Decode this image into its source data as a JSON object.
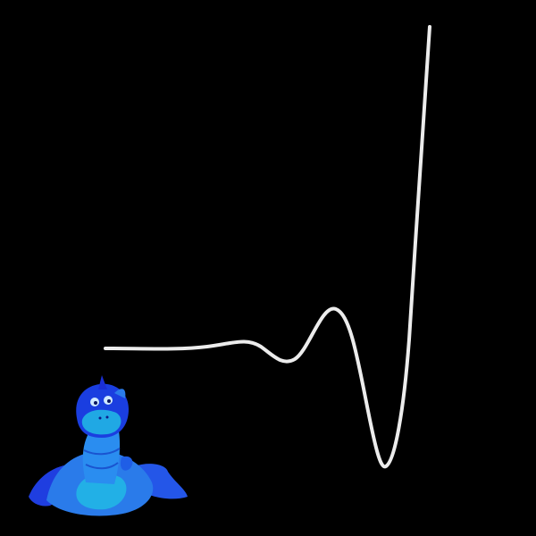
{
  "colors": {
    "background": "#000000",
    "curve": "#ececec",
    "creature_dark": "#1a2fd6",
    "creature_mid": "#2a7bea",
    "creature_light": "#22b0e6",
    "creature_shadow": "#0c1a8a"
  },
  "curve": {
    "style": "smooth white waveform: flat start, small bump, dip, peak, deep trough, then a near-vertical rise"
  },
  "figure": {
    "kind": "blue cartoon dragon figurine",
    "icon": "dragon-figurine-icon"
  }
}
